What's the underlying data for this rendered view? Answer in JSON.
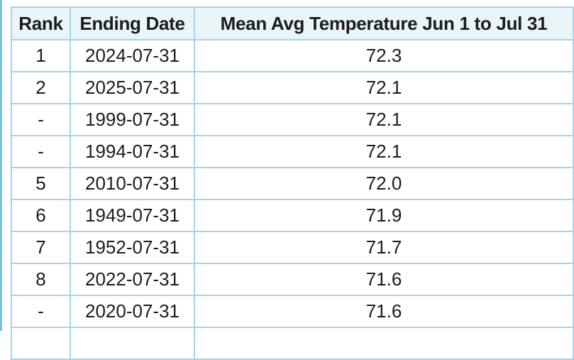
{
  "table": {
    "headers": {
      "rank": "Rank",
      "date": "Ending Date",
      "temp": "Mean Avg Temperature Jun 1 to Jul 31"
    },
    "rows": [
      {
        "rank": "1",
        "date": "2024-07-31",
        "temp": "72.3"
      },
      {
        "rank": "2",
        "date": "2025-07-31",
        "temp": "72.1"
      },
      {
        "rank": "-",
        "date": "1999-07-31",
        "temp": "72.1"
      },
      {
        "rank": "-",
        "date": "1994-07-31",
        "temp": "72.1"
      },
      {
        "rank": "5",
        "date": "2010-07-31",
        "temp": "72.0"
      },
      {
        "rank": "6",
        "date": "1949-07-31",
        "temp": "71.9"
      },
      {
        "rank": "7",
        "date": "1952-07-31",
        "temp": "71.7"
      },
      {
        "rank": "8",
        "date": "2022-07-31",
        "temp": "71.6"
      },
      {
        "rank": "-",
        "date": "2020-07-31",
        "temp": "71.6"
      },
      {
        "rank": "",
        "date": "",
        "temp": ""
      }
    ]
  }
}
